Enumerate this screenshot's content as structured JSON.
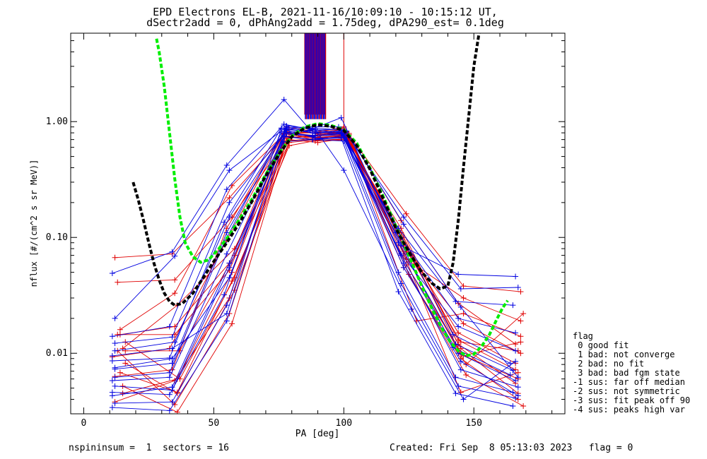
{
  "title_line1": "EPD Electrons EL-B, 2021-11-16/10:09:10 - 10:15:12 UT,",
  "title_line2": "dSectr2add = 0, dPhAng2add = 1.75deg, dPA290_est=   0.1deg",
  "footer_left": "nspininsum =  1  sectors = 16",
  "footer_right": "Created: Fri Sep  8 05:13:03 2023   flag = 0",
  "legend": {
    "title": "flag",
    "items": [
      " 0 good fit",
      " 1 bad: not converge",
      " 2 bad: no fit",
      " 3 bad: bad fgm state",
      "-1 sus: far off median",
      "-2 sus: not symmetric",
      "-3 sus: fit peak off 90",
      "-4 sus: peaks high var"
    ]
  },
  "colors": {
    "series_a": "#e00000",
    "series_b": "#0000e0",
    "fit_green": "#00ee00",
    "fit_black": "#000000"
  },
  "chart_data": {
    "type": "line",
    "xlabel": "PA [deg]",
    "ylabel": "nflux [#/(cm^2 s sr MeV)]",
    "xlim": [
      -5,
      185
    ],
    "ylim": [
      0.003,
      5.8
    ],
    "yscale": "log",
    "xticks": [
      "0",
      "50",
      "100",
      "150"
    ],
    "yticks": [
      "0.01",
      "0.10",
      "1.00"
    ],
    "series": [
      {
        "color": "red",
        "marker": "+",
        "lines": [
          {
            "x": [
              12,
              34,
              56,
              78,
              88,
              100,
              122,
              144,
              166
            ],
            "y": [
              0.067,
              0.072,
              0.22,
              0.8,
              0.7,
              0.75,
              0.12,
              0.012,
              0.0055
            ]
          },
          {
            "x": [
              13,
              35,
              57,
              79,
              89,
              101,
              123,
              145,
              167
            ],
            "y": [
              0.041,
              0.043,
              0.15,
              0.75,
              0.68,
              0.7,
              0.1,
              0.0098,
              0.006
            ]
          },
          {
            "x": [
              14,
              35,
              57,
              79,
              90,
              101,
              124,
              146,
              168
            ],
            "y": [
              0.016,
              0.033,
              0.28,
              0.86,
              0.78,
              0.82,
              0.075,
              0.018,
              0.01
            ]
          },
          {
            "x": [
              15,
              36,
              58,
              79,
              90,
              102,
              124,
              146,
              168
            ],
            "y": [
              0.011,
              0.026,
              0.08,
              0.7,
              0.66,
              0.72,
              0.065,
              0.03,
              0.019
            ]
          },
          {
            "x": [
              15,
              36,
              57,
              78,
              89,
              101,
              123,
              145,
              167
            ],
            "y": [
              0.0045,
              0.006,
              0.05,
              0.78,
              0.72,
              0.76,
              0.055,
              0.009,
              0.004
            ]
          },
          {
            "x": [
              16,
              36,
              58,
              79,
              90,
              102,
              125,
              147,
              169
            ],
            "y": [
              0.0082,
              0.0045,
              0.035,
              0.66,
              0.7,
              0.68,
              0.048,
              0.0065,
              0.0035
            ]
          },
          {
            "x": [
              12,
              34,
              55,
              77,
              88,
              100,
              122,
              144,
              166
            ],
            "y": [
              0.0063,
              0.0072,
              0.12,
              0.82,
              0.8,
              0.9,
              0.14,
              0.027,
              0.012
            ]
          },
          {
            "x": [
              13,
              35,
              56,
              78,
              89,
              101,
              123,
              145,
              167
            ],
            "y": [
              0.0105,
              0.0036,
              0.022,
              0.72,
              0.75,
              0.78,
              0.09,
              0.011,
              0.0045
            ]
          },
          {
            "x": [
              14,
              35,
              56,
              78,
              89,
              100,
              122,
              144,
              166
            ],
            "y": [
              0.0145,
              0.017,
              0.06,
              0.9,
              0.82,
              0.85,
              0.1,
              0.015,
              0.0082
            ]
          },
          {
            "x": [
              15,
              36,
              57,
              78,
              90,
              101,
              123,
              145,
              167
            ],
            "y": [
              0.0052,
              0.0031,
              0.018,
              0.68,
              0.72,
              0.74,
              0.072,
              0.0046,
              0.0068
            ]
          },
          {
            "x": [
              16,
              37,
              58,
              79,
              90,
              102,
              124,
              146,
              168
            ],
            "y": [
              0.0125,
              0.006,
              0.045,
              0.74,
              0.73,
              0.77,
              0.16,
              0.038,
              0.034
            ]
          },
          {
            "x": [
              11,
              33,
              55,
              77,
              88,
              100,
              122,
              144,
              166
            ],
            "y": [
              0.0093,
              0.011,
              0.095,
              0.79,
              0.8,
              0.81,
              0.11,
              0.013,
              0.0072
            ]
          },
          {
            "x": [
              13,
              35,
              56,
              78,
              89,
              101,
              128,
              146,
              168
            ],
            "y": [
              0.0145,
              0.0145,
              0.052,
              0.8,
              0.76,
              0.82,
              0.019,
              0.022,
              0.014
            ]
          },
          {
            "x": [
              14,
              36,
              57,
              79,
              90,
              102,
              125,
              147,
              169
            ],
            "y": [
              0.0068,
              0.0046,
              0.042,
              0.62,
              0.69,
              0.71,
              0.062,
              0.008,
              0.022
            ]
          },
          {
            "x": [
              12,
              35,
              56,
              78,
              89,
              100,
              123,
              145,
              167
            ],
            "y": [
              0.0038,
              0.0058,
              0.03,
              0.78,
              0.72,
              0.88,
              0.085,
              0.0125,
              0.0105
            ]
          },
          {
            "x": [
              16,
              37,
              58,
              80,
              91,
              102,
              124,
              146,
              168
            ],
            "y": [
              0.0105,
              0.0105,
              0.07,
              0.73,
              0.77,
              0.79,
              0.058,
              0.0095,
              0.0125
            ]
          }
        ]
      },
      {
        "color": "blue",
        "marker": "+",
        "lines": [
          {
            "x": [
              11,
              34,
              55,
              77,
              87,
              99,
              122,
              144,
              166
            ],
            "y": [
              0.049,
              0.075,
              0.42,
              1.55,
              0.85,
              1.08,
              0.085,
              0.048,
              0.046
            ]
          },
          {
            "x": [
              12,
              35,
              56,
              78,
              88,
              100,
              123,
              145,
              167
            ],
            "y": [
              0.02,
              0.069,
              0.38,
              0.9,
              0.8,
              0.84,
              0.15,
              0.036,
              0.037
            ]
          },
          {
            "x": [
              11,
              33,
              55,
              77,
              88,
              99,
              121,
              143,
              165
            ],
            "y": [
              0.014,
              0.017,
              0.26,
              0.95,
              0.85,
              0.8,
              0.12,
              0.028,
              0.026
            ]
          },
          {
            "x": [
              12,
              34,
              56,
              78,
              89,
              100,
              122,
              144,
              166
            ],
            "y": [
              0.0122,
              0.0138,
              0.2,
              0.85,
              0.82,
              0.78,
              0.1,
              0.02,
              0.015
            ]
          },
          {
            "x": [
              11,
              33,
              54,
              76,
              87,
              98,
              120,
              142,
              164
            ],
            "y": [
              0.0086,
              0.0091,
              0.135,
              0.88,
              0.9,
              0.9,
              0.125,
              0.0145,
              0.0082
            ]
          },
          {
            "x": [
              12,
              34,
              55,
              77,
              88,
              99,
              121,
              143,
              165
            ],
            "y": [
              0.0073,
              0.0082,
              0.11,
              0.8,
              0.76,
              0.8,
              0.09,
              0.012,
              0.0071
            ]
          },
          {
            "x": [
              11,
              33,
              55,
              77,
              88,
              100,
              122,
              144,
              166
            ],
            "y": [
              0.0058,
              0.0062,
              0.072,
              0.75,
              0.7,
              0.75,
              0.07,
              0.01,
              0.0058
            ]
          },
          {
            "x": [
              12,
              34,
              56,
              78,
              89,
              101,
              123,
              145,
              167
            ],
            "y": [
              0.0052,
              0.0048,
              0.055,
              0.84,
              0.72,
              0.73,
              0.06,
              0.0072,
              0.0051
            ]
          },
          {
            "x": [
              11,
              33,
              54,
              76,
              87,
              99,
              121,
              143,
              165
            ],
            "y": [
              0.0046,
              0.0044,
              0.032,
              0.86,
              0.88,
              0.85,
              0.05,
              0.0062,
              0.0046
            ]
          },
          {
            "x": [
              12,
              34,
              55,
              77,
              88,
              100,
              122,
              144,
              166
            ],
            "y": [
              0.0037,
              0.0038,
              0.026,
              0.74,
              0.7,
              0.68,
              0.04,
              0.0052,
              0.0041
            ]
          },
          {
            "x": [
              11,
              33,
              55,
              77,
              88,
              99,
              121,
              143,
              165
            ],
            "y": [
              0.0034,
              0.0032,
              0.019,
              0.67,
              0.7,
              0.72,
              0.034,
              0.0045,
              0.0035
            ]
          },
          {
            "x": [
              12,
              34,
              56,
              78,
              89,
              100,
              126,
              146,
              166
            ],
            "y": [
              0.0075,
              0.009,
              0.045,
              0.92,
              0.86,
              0.38,
              0.024,
              0.004,
              0.0085
            ]
          },
          {
            "x": [
              11,
              34,
              55,
              77,
              88,
              99,
              122,
              144,
              166
            ],
            "y": [
              0.0095,
              0.011,
              0.022,
              0.82,
              0.74,
              0.79,
              0.072,
              0.017,
              0.0105
            ]
          },
          {
            "x": [
              12,
              33,
              54,
              76,
              87,
              98,
              120,
              142,
              164
            ],
            "y": [
              0.0062,
              0.0068,
              0.09,
              0.8,
              0.84,
              0.86,
              0.11,
              0.0112,
              0.0065
            ]
          },
          {
            "x": [
              11,
              34,
              56,
              78,
              89,
              100,
              123,
              145,
              167
            ],
            "y": [
              0.0043,
              0.0051,
              0.06,
              0.78,
              0.75,
              0.77,
              0.055,
              0.0085,
              0.0043
            ]
          },
          {
            "x": [
              12,
              35,
              56,
              78,
              89,
              101,
              123,
              145,
              167
            ],
            "y": [
              0.0105,
              0.0125,
              0.15,
              0.87,
              0.79,
              0.83,
              0.13,
              0.025,
              0.0062
            ]
          }
        ]
      },
      {
        "name": "fit",
        "color": "green",
        "style": "dashed",
        "x": [
          28,
          29,
          31,
          33,
          35,
          37,
          39,
          42,
          45,
          48,
          52,
          56,
          60,
          65,
          70,
          75,
          80,
          85,
          90,
          95,
          100,
          105,
          110,
          115,
          120,
          125,
          130,
          134,
          138,
          141,
          144,
          147,
          150,
          153,
          156,
          159,
          161,
          163
        ],
        "y": [
          5.2,
          4.0,
          2.0,
          0.8,
          0.32,
          0.15,
          0.09,
          0.068,
          0.061,
          0.064,
          0.08,
          0.105,
          0.145,
          0.22,
          0.35,
          0.53,
          0.75,
          0.9,
          0.96,
          0.93,
          0.85,
          0.65,
          0.4,
          0.23,
          0.125,
          0.07,
          0.038,
          0.024,
          0.016,
          0.0125,
          0.0105,
          0.0095,
          0.0098,
          0.0115,
          0.0145,
          0.02,
          0.0245,
          0.0285
        ]
      },
      {
        "name": "fit2",
        "color": "black",
        "style": "dashed",
        "x": [
          19,
          21,
          23,
          25,
          27,
          29,
          31,
          33,
          35,
          38,
          42,
          46,
          50,
          55,
          60,
          65,
          70,
          75,
          80,
          85,
          90,
          95,
          100,
          105,
          110,
          115,
          120,
          125,
          130,
          134,
          137,
          140,
          142,
          144,
          146,
          148,
          150,
          152
        ],
        "y": [
          0.3,
          0.21,
          0.14,
          0.09,
          0.06,
          0.043,
          0.033,
          0.028,
          0.026,
          0.027,
          0.033,
          0.045,
          0.062,
          0.09,
          0.135,
          0.21,
          0.34,
          0.52,
          0.74,
          0.88,
          0.94,
          0.91,
          0.84,
          0.62,
          0.39,
          0.22,
          0.12,
          0.075,
          0.05,
          0.04,
          0.036,
          0.038,
          0.06,
          0.14,
          0.4,
          1.1,
          3.0,
          5.8
        ]
      }
    ]
  }
}
